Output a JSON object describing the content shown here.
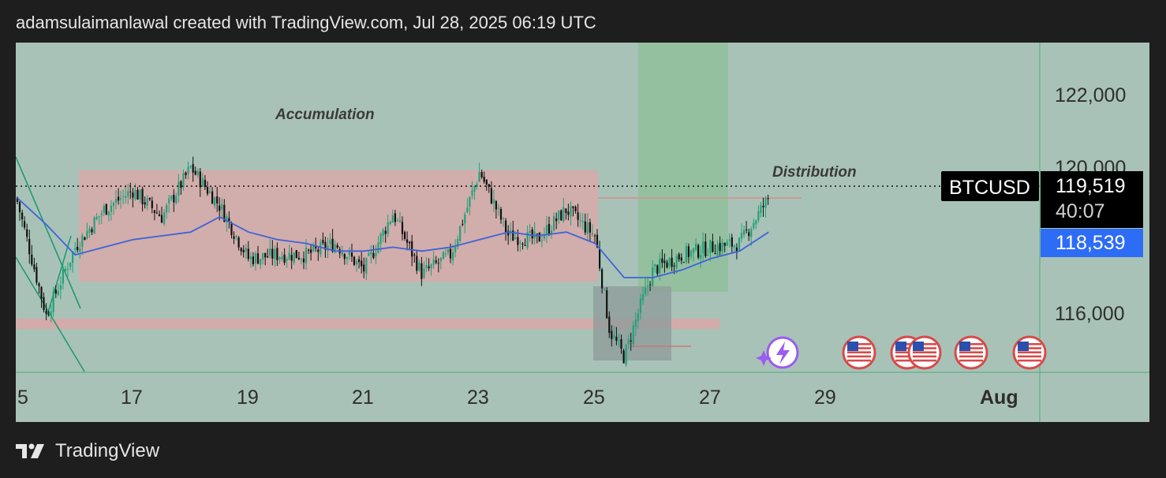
{
  "header": {
    "attribution": "adamsulaimanlawal created with TradingView.com, Jul 28, 2025 06:19 UTC"
  },
  "footer": {
    "brand": "TradingView"
  },
  "colors": {
    "chart_background": "#a9c2b7",
    "candle_up": "#24a17a",
    "candle_down": "#111111",
    "moving_average": "#3e63d8",
    "range_box": "#d8a9a9",
    "breakout_zone": "#8fbf98",
    "demand_box": "#8e9c9a",
    "price_tag_bg": "#000000",
    "ma_tag_bg": "#2d6cf5"
  },
  "chart_data": {
    "type": "candlestick",
    "symbol": "BTCUSD",
    "x_ticks": [
      "5",
      "17",
      "19",
      "21",
      "23",
      "25",
      "27",
      "29",
      "Aug"
    ],
    "y_ticks": [
      "122,000",
      "120,000",
      "116,000"
    ],
    "ylim": [
      114900,
      123600
    ],
    "last_price": "119,519",
    "countdown": "40:07",
    "moving_average_value": "118,539",
    "annotations": [
      "Accumulation",
      "Distribution"
    ],
    "zones": {
      "accumulation_range": {
        "from": "Jul 16",
        "to": "Jul 25",
        "low": 117500,
        "high": 120600
      },
      "support_band": {
        "from": "Jul 15",
        "to": "Jul 27",
        "low": 115700,
        "high": 115950
      },
      "demand_box": {
        "from": "Jul 25",
        "to": "Jul 26",
        "low": 114900,
        "high": 117300
      },
      "breakout_zone": {
        "from": "Jul 26",
        "to": "Jul 27",
        "low": 117100,
        "high": 123600
      }
    },
    "price_path": [
      {
        "date": "Jul 15",
        "price": 119400
      },
      {
        "date": "Jul 15 12:00",
        "price": 116400
      },
      {
        "date": "Jul 16",
        "price": 118200
      },
      {
        "date": "Jul 16 12:00",
        "price": 119200
      },
      {
        "date": "Jul 17",
        "price": 119700
      },
      {
        "date": "Jul 17 12:00",
        "price": 119000
      },
      {
        "date": "Jul 18",
        "price": 120300
      },
      {
        "date": "Jul 18 12:00",
        "price": 119300
      },
      {
        "date": "Jul 19",
        "price": 117900
      },
      {
        "date": "Jul 19 12:00",
        "price": 118000
      },
      {
        "date": "Jul 20",
        "price": 118000
      },
      {
        "date": "Jul 20 12:00",
        "price": 118300
      },
      {
        "date": "Jul 21",
        "price": 117600
      },
      {
        "date": "Jul 21 12:00",
        "price": 119100
      },
      {
        "date": "Jul 22",
        "price": 117500
      },
      {
        "date": "Jul 22 12:00",
        "price": 118000
      },
      {
        "date": "Jul 23",
        "price": 120200
      },
      {
        "date": "Jul 23 12:00",
        "price": 118500
      },
      {
        "date": "Jul 24",
        "price": 118400
      },
      {
        "date": "Jul 24 12:00",
        "price": 119200
      },
      {
        "date": "Jul 25",
        "price": 118500
      },
      {
        "date": "Jul 25 06:00",
        "price": 116000
      },
      {
        "date": "Jul 25 12:00",
        "price": 115300
      },
      {
        "date": "Jul 25 18:00",
        "price": 116500
      },
      {
        "date": "Jul 26",
        "price": 117600
      },
      {
        "date": "Jul 26 12:00",
        "price": 118000
      },
      {
        "date": "Jul 27",
        "price": 118200
      },
      {
        "date": "Jul 27 12:00",
        "price": 118300
      },
      {
        "date": "Jul 28",
        "price": 119500
      }
    ],
    "moving_average_path": [
      {
        "date": "Jul 15",
        "price": 119500
      },
      {
        "date": "Jul 15 12:00",
        "price": 118800
      },
      {
        "date": "Jul 16",
        "price": 118000
      },
      {
        "date": "Jul 16 12:00",
        "price": 118200
      },
      {
        "date": "Jul 17",
        "price": 118400
      },
      {
        "date": "Jul 17 12:00",
        "price": 118500
      },
      {
        "date": "Jul 18",
        "price": 118600
      },
      {
        "date": "Jul 18 12:00",
        "price": 119000
      },
      {
        "date": "Jul 19",
        "price": 118600
      },
      {
        "date": "Jul 19 12:00",
        "price": 118400
      },
      {
        "date": "Jul 20",
        "price": 118300
      },
      {
        "date": "Jul 20 12:00",
        "price": 118100
      },
      {
        "date": "Jul 21",
        "price": 118100
      },
      {
        "date": "Jul 21 12:00",
        "price": 118200
      },
      {
        "date": "Jul 22",
        "price": 118100
      },
      {
        "date": "Jul 22 12:00",
        "price": 118200
      },
      {
        "date": "Jul 23",
        "price": 118400
      },
      {
        "date": "Jul 23 12:00",
        "price": 118600
      },
      {
        "date": "Jul 24",
        "price": 118500
      },
      {
        "date": "Jul 24 12:00",
        "price": 118600
      },
      {
        "date": "Jul 25",
        "price": 118300
      },
      {
        "date": "Jul 25 12:00",
        "price": 117400
      },
      {
        "date": "Jul 26",
        "price": 117400
      },
      {
        "date": "Jul 26 12:00",
        "price": 117600
      },
      {
        "date": "Jul 27",
        "price": 117900
      },
      {
        "date": "Jul 27 12:00",
        "price": 118100
      },
      {
        "date": "Jul 28",
        "price": 118600
      }
    ],
    "event_markers": [
      "flash-icon",
      "us-flag-icon",
      "us-flag-icon",
      "us-flag-icon",
      "us-flag-icon",
      "us-flag-icon"
    ]
  }
}
